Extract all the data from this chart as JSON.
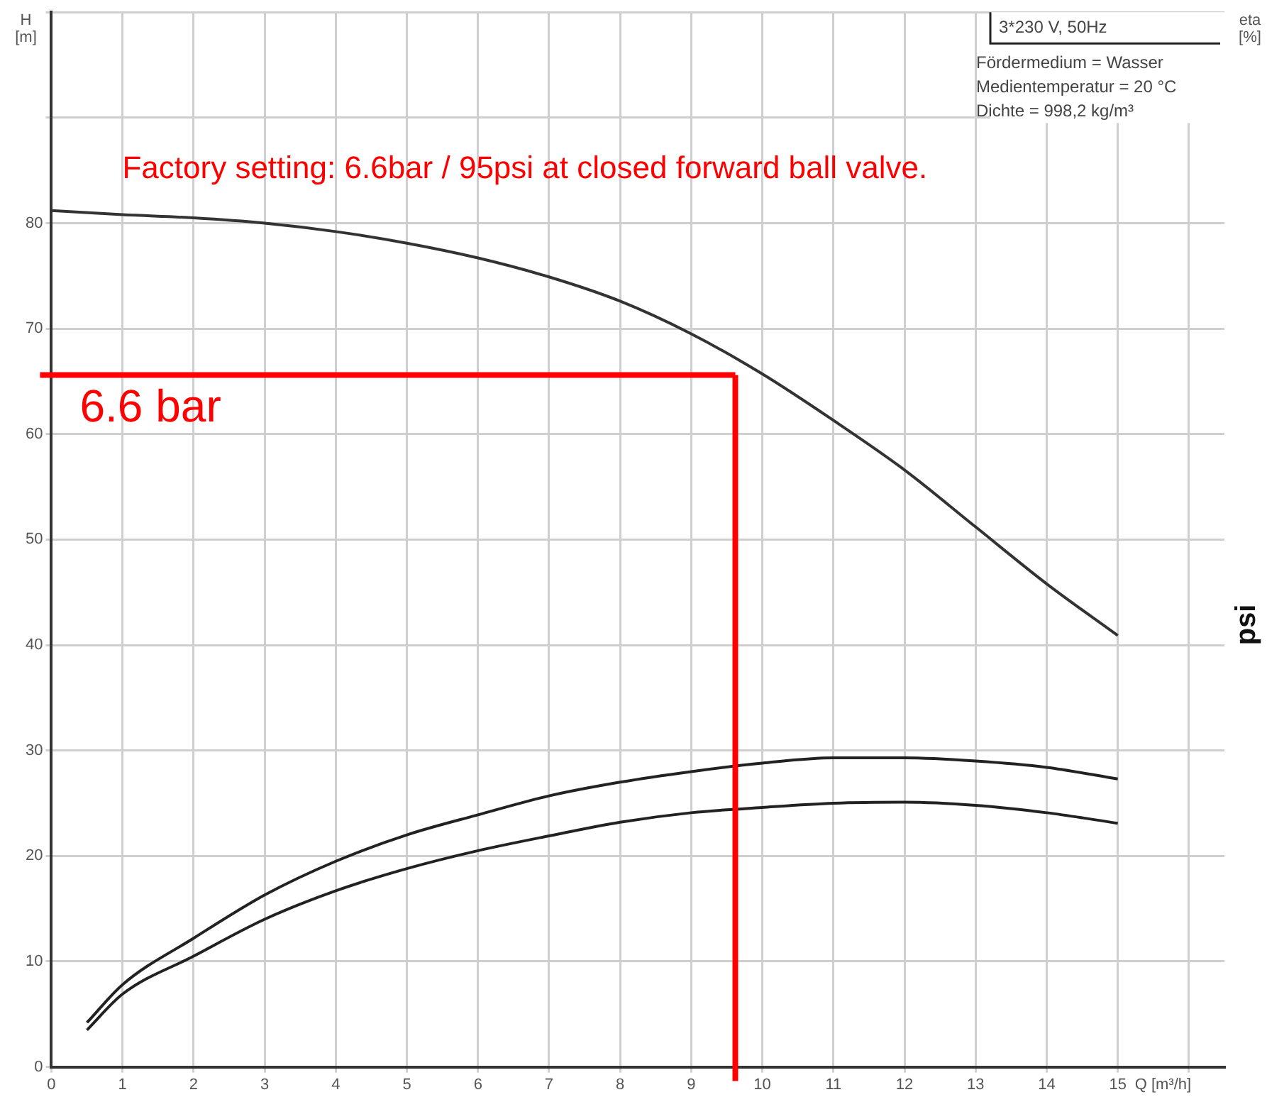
{
  "chart_data": {
    "type": "line",
    "title": "Factory setting: 6.6bar / 95psi at closed forward ball valve.",
    "subtitle": "3*230 V, 50Hz",
    "xlabel": "Q [m³/h]",
    "ylabel": "H [m]",
    "y2label": "eta [%]",
    "annotations": [
      "Fördermedium = Wasser",
      "Medientemperatur = 20 °C",
      "Dichte = 998,2 kg/m³",
      "psi"
    ],
    "series": [
      {
        "color": "#333333",
        "x": [
          0,
          1,
          2,
          3,
          4,
          5,
          6,
          7,
          8,
          9,
          10,
          11,
          12,
          13,
          14,
          15
        ],
        "values": [
          81.2,
          80.8,
          80.5,
          80.0,
          79.2,
          78.1,
          76.7,
          74.9,
          72.6,
          69.5,
          65.7,
          61.3,
          56.6,
          51.2,
          45.8,
          40.9
        ]
      },
      {
        "color": "#222222",
        "x": [
          0.5,
          1,
          2,
          3,
          4,
          5,
          6,
          7,
          8,
          9,
          10,
          11,
          12,
          13,
          14,
          15
        ],
        "values": [
          4.2,
          7.8,
          12.2,
          16.3,
          19.5,
          22.0,
          23.9,
          25.7,
          27.0,
          28.0,
          28.8,
          29.3,
          29.3,
          29.0,
          28.4,
          27.3
        ]
      },
      {
        "color": "#222222",
        "x": [
          0.5,
          1,
          2,
          3,
          4,
          5,
          6,
          7,
          8,
          9,
          10,
          11,
          12,
          13,
          14,
          15
        ],
        "values": [
          3.5,
          6.9,
          10.5,
          14.0,
          16.7,
          18.8,
          20.5,
          21.9,
          23.2,
          24.1,
          24.6,
          25.0,
          25.1,
          24.8,
          24.1,
          23.1
        ]
      }
    ],
    "xlim": [
      0,
      16.5
    ],
    "xticks": [
      0,
      1,
      2,
      3,
      4,
      5,
      6,
      7,
      8,
      9,
      10,
      11,
      12,
      13,
      14,
      15,
      {
        "value": 16,
        "label": null
      }
    ],
    "ylim": [
      0,
      100
    ],
    "yticks": [
      0,
      10,
      20,
      30,
      40,
      50,
      60,
      70,
      80,
      {
        "value": 90,
        "label": null
      },
      {
        "value": 100,
        "label": null
      }
    ],
    "ref_lines": [
      {
        "axis": "y",
        "value": 65.6,
        "label": "6.6 bar",
        "color": "#ff0000"
      },
      {
        "axis": "x",
        "value": 9.62,
        "color": "#ff0000"
      }
    ],
    "grid": true,
    "legend": false,
    "marker": "none",
    "line_style": "solid"
  }
}
